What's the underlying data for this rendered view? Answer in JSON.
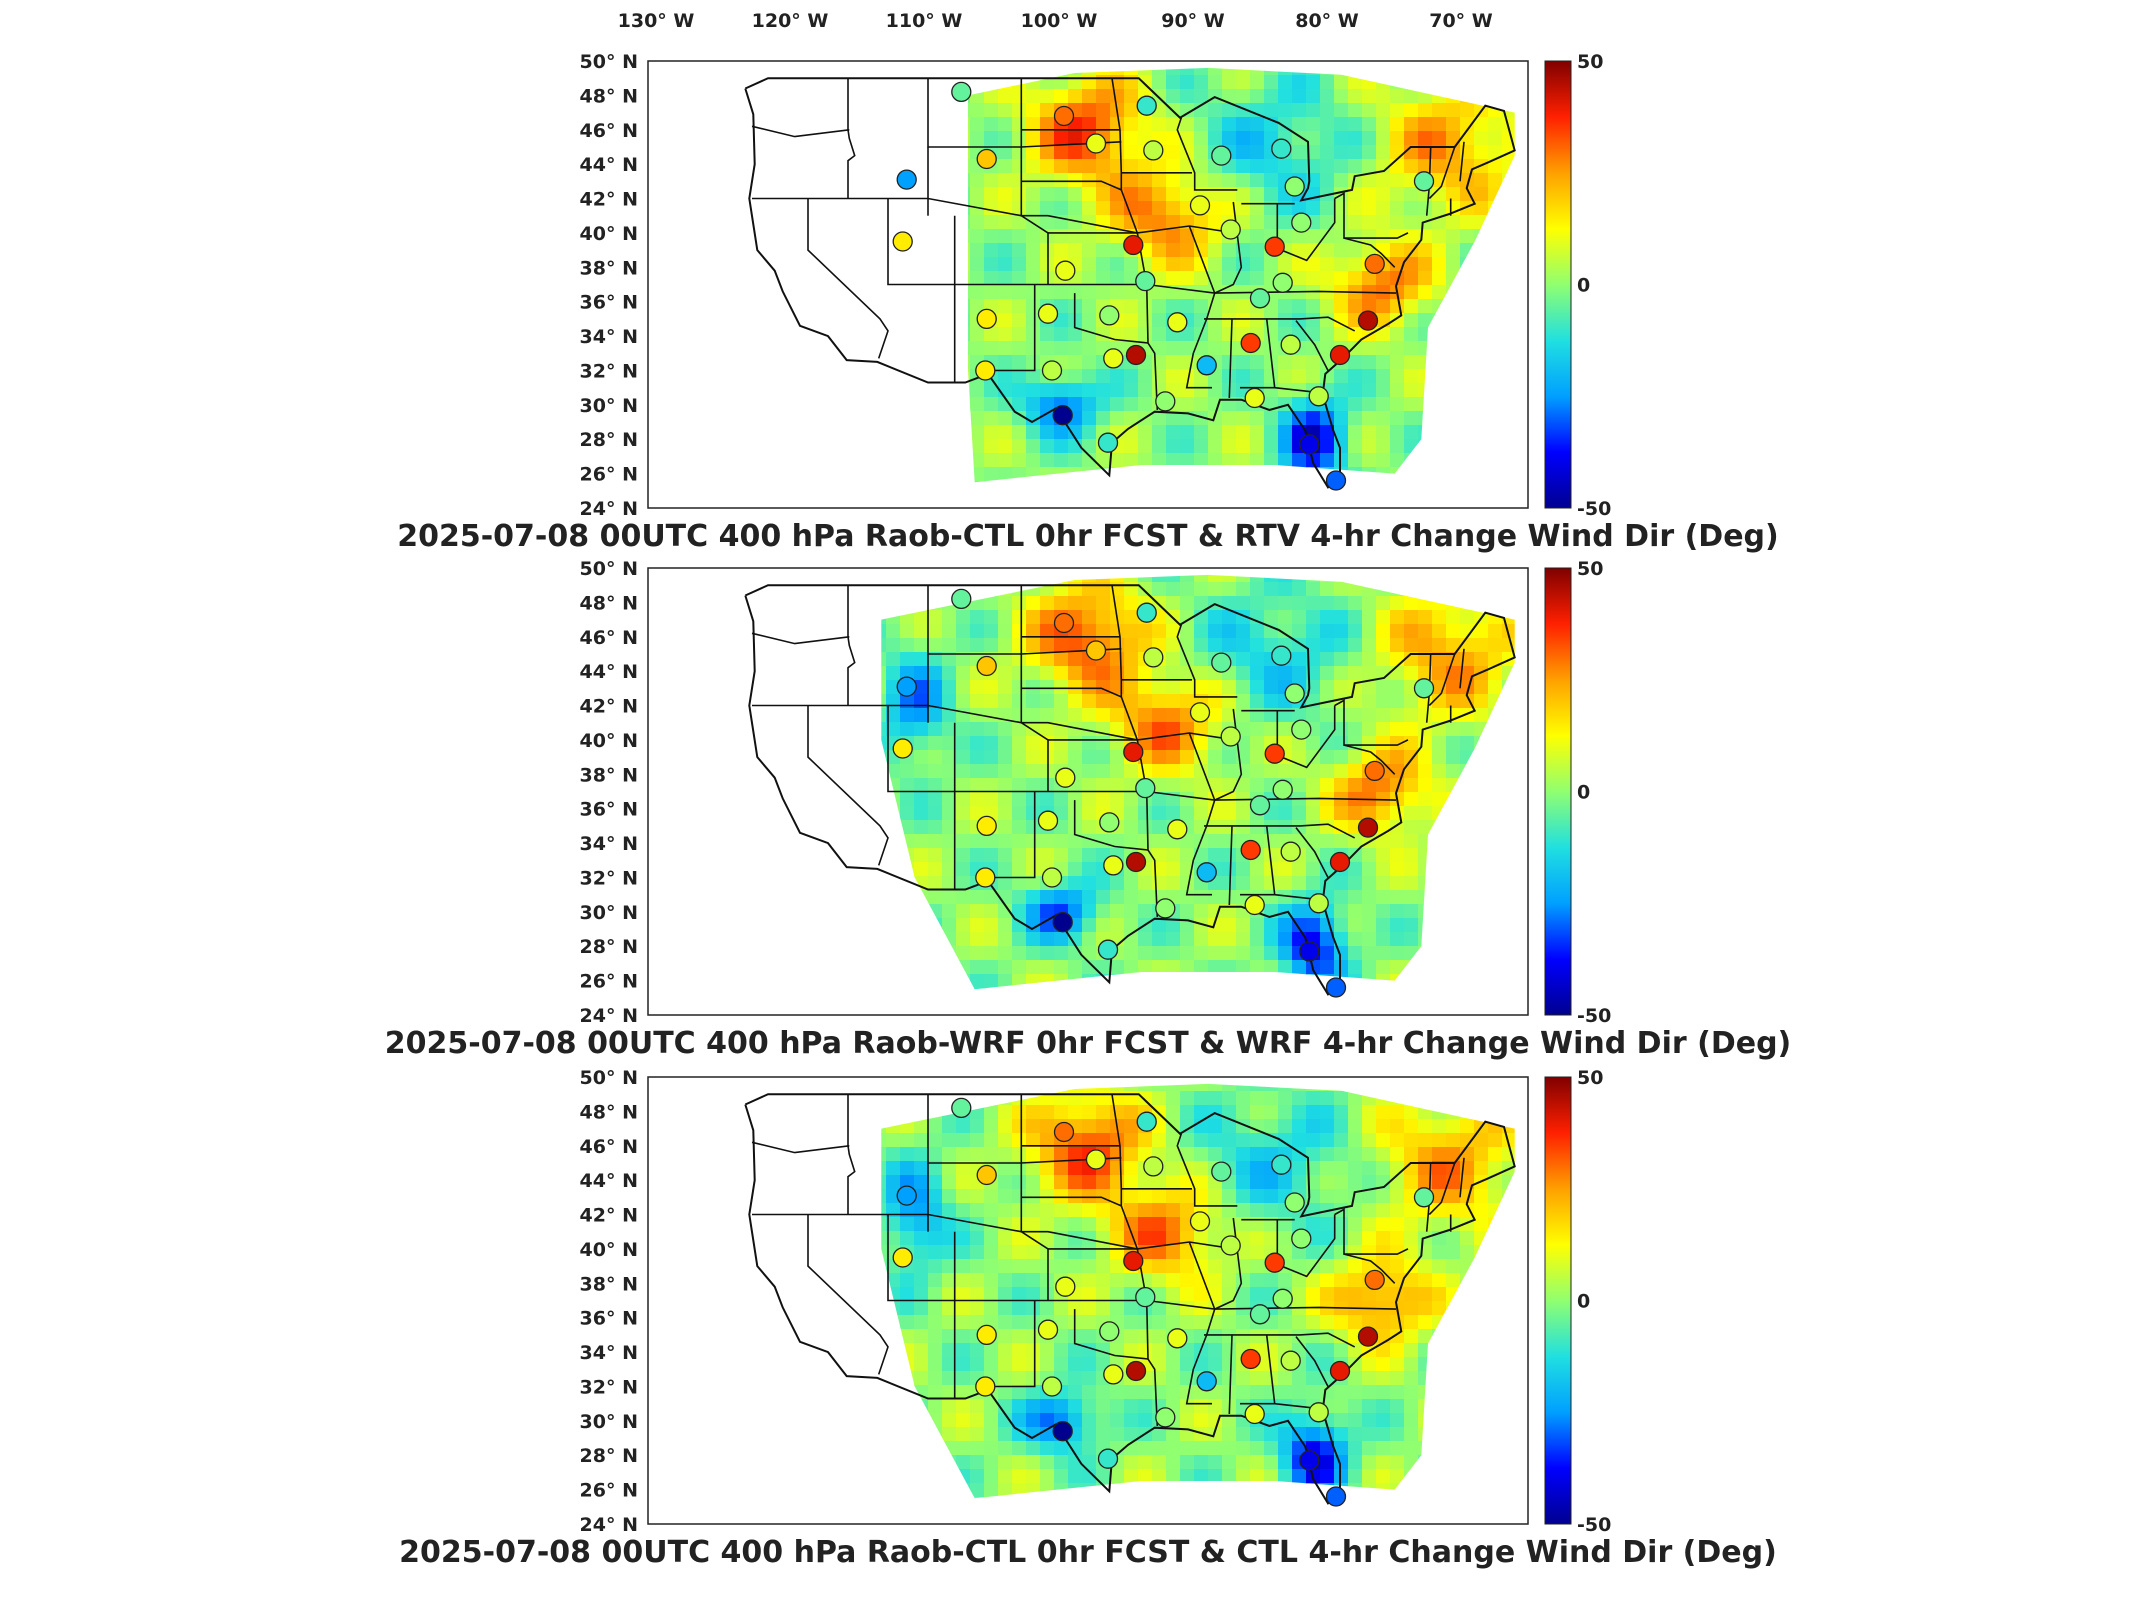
{
  "figure": {
    "top_axis_labels": [
      "130° W",
      "120° W",
      "110° W",
      "100° W",
      "90° W",
      "80° W",
      "70° W"
    ],
    "lat_labels": [
      "50° N",
      "48° N",
      "46° N",
      "44° N",
      "42° N",
      "40° N",
      "38° N",
      "36° N",
      "34° N",
      "32° N",
      "30° N",
      "28° N",
      "26° N",
      "24° N"
    ],
    "colorbar": {
      "max_label": "50",
      "mid_label": "0",
      "min_label": "-50",
      "range": [
        -50,
        50
      ]
    },
    "panels": [
      {
        "title": "2025-07-08 00UTC 400 hPa Raob-CTL 0hr FCST & RTV 4-hr Change Wind Dir (Deg)"
      },
      {
        "title": "2025-07-08 00UTC 400 hPa Raob-WRF 0hr FCST & WRF 4-hr Change Wind Dir (Deg)"
      },
      {
        "title": "2025-07-08 00UTC 400 hPa Raob-CTL 0hr FCST & CTL 4-hr Change Wind Dir (Deg)"
      }
    ],
    "colormap": [
      "#00008f",
      "#0000ff",
      "#00a0ff",
      "#20e0e0",
      "#90ff70",
      "#ffff00",
      "#ffa000",
      "#ff2000",
      "#800000"
    ]
  },
  "chart_data": {
    "type": "map",
    "xlabel": "",
    "ylabel": "",
    "lon_range": [
      -132,
      -66
    ],
    "lat_range": [
      24,
      50
    ],
    "colorbar_range": [
      -50,
      50
    ],
    "panels": [
      {
        "title": "2025-07-08 00UTC 400 hPa Raob-CTL 0hr FCST & RTV 4-hr Change Wind Dir (Deg)",
        "stations": [
          {
            "lon": -108.5,
            "lat": 48.2,
            "value": -5
          },
          {
            "lon": -100.8,
            "lat": 46.8,
            "value": 30
          },
          {
            "lon": -94.6,
            "lat": 47.4,
            "value": -10
          },
          {
            "lon": -106.6,
            "lat": 44.3,
            "value": 20
          },
          {
            "lon": -98.4,
            "lat": 45.2,
            "value": 10
          },
          {
            "lon": -94.1,
            "lat": 44.8,
            "value": 5
          },
          {
            "lon": -89.0,
            "lat": 44.5,
            "value": -5
          },
          {
            "lon": -84.5,
            "lat": 44.9,
            "value": -10
          },
          {
            "lon": -83.5,
            "lat": 42.7,
            "value": 0
          },
          {
            "lon": -73.8,
            "lat": 43.0,
            "value": -5
          },
          {
            "lon": -112.6,
            "lat": 43.1,
            "value": -25
          },
          {
            "lon": -90.6,
            "lat": 41.6,
            "value": 10
          },
          {
            "lon": -88.3,
            "lat": 40.2,
            "value": 5
          },
          {
            "lon": -83.0,
            "lat": 40.6,
            "value": 0
          },
          {
            "lon": -85.0,
            "lat": 39.2,
            "value": 35
          },
          {
            "lon": -95.6,
            "lat": 39.3,
            "value": 40
          },
          {
            "lon": -112.9,
            "lat": 39.5,
            "value": 15
          },
          {
            "lon": -100.7,
            "lat": 37.8,
            "value": 10
          },
          {
            "lon": -94.7,
            "lat": 37.2,
            "value": -5
          },
          {
            "lon": -84.4,
            "lat": 37.1,
            "value": 0
          },
          {
            "lon": -77.5,
            "lat": 38.2,
            "value": 30
          },
          {
            "lon": -106.6,
            "lat": 35.0,
            "value": 15
          },
          {
            "lon": -102.0,
            "lat": 35.3,
            "value": 10
          },
          {
            "lon": -97.4,
            "lat": 35.2,
            "value": 0
          },
          {
            "lon": -92.3,
            "lat": 34.8,
            "value": 10
          },
          {
            "lon": -86.1,
            "lat": 36.2,
            "value": -5
          },
          {
            "lon": -78.0,
            "lat": 34.9,
            "value": 45
          },
          {
            "lon": -95.4,
            "lat": 32.9,
            "value": 45
          },
          {
            "lon": -86.8,
            "lat": 33.6,
            "value": 35
          },
          {
            "lon": -83.8,
            "lat": 33.5,
            "value": 5
          },
          {
            "lon": -80.1,
            "lat": 32.9,
            "value": 40
          },
          {
            "lon": -90.1,
            "lat": 32.3,
            "value": -20
          },
          {
            "lon": -97.1,
            "lat": 32.7,
            "value": 10
          },
          {
            "lon": -101.7,
            "lat": 32.0,
            "value": 5
          },
          {
            "lon": -106.7,
            "lat": 32.0,
            "value": 15
          },
          {
            "lon": -100.9,
            "lat": 29.4,
            "value": -50
          },
          {
            "lon": -97.5,
            "lat": 27.8,
            "value": -10
          },
          {
            "lon": -93.2,
            "lat": 30.2,
            "value": 0
          },
          {
            "lon": -86.5,
            "lat": 30.4,
            "value": 10
          },
          {
            "lon": -81.7,
            "lat": 30.5,
            "value": 5
          },
          {
            "lon": -82.4,
            "lat": 27.7,
            "value": -40
          },
          {
            "lon": -80.4,
            "lat": 25.6,
            "value": -30
          }
        ]
      },
      {
        "title": "2025-07-08 00UTC 400 hPa Raob-WRF 0hr FCST & WRF 4-hr Change Wind Dir (Deg)",
        "stations": [
          {
            "lon": -108.5,
            "lat": 48.2,
            "value": -5
          },
          {
            "lon": -100.8,
            "lat": 46.8,
            "value": 30
          },
          {
            "lon": -94.6,
            "lat": 47.4,
            "value": -10
          },
          {
            "lon": -106.6,
            "lat": 44.3,
            "value": 20
          },
          {
            "lon": -98.4,
            "lat": 45.2,
            "value": 20
          },
          {
            "lon": -94.1,
            "lat": 44.8,
            "value": 5
          },
          {
            "lon": -89.0,
            "lat": 44.5,
            "value": -5
          },
          {
            "lon": -84.5,
            "lat": 44.9,
            "value": -10
          },
          {
            "lon": -83.5,
            "lat": 42.7,
            "value": 0
          },
          {
            "lon": -73.8,
            "lat": 43.0,
            "value": -5
          },
          {
            "lon": -112.6,
            "lat": 43.1,
            "value": -25
          },
          {
            "lon": -90.6,
            "lat": 41.6,
            "value": 10
          },
          {
            "lon": -88.3,
            "lat": 40.2,
            "value": 5
          },
          {
            "lon": -83.0,
            "lat": 40.6,
            "value": 0
          },
          {
            "lon": -85.0,
            "lat": 39.2,
            "value": 35
          },
          {
            "lon": -95.6,
            "lat": 39.3,
            "value": 40
          },
          {
            "lon": -112.9,
            "lat": 39.5,
            "value": 15
          },
          {
            "lon": -100.7,
            "lat": 37.8,
            "value": 10
          },
          {
            "lon": -94.7,
            "lat": 37.2,
            "value": -5
          },
          {
            "lon": -84.4,
            "lat": 37.1,
            "value": 0
          },
          {
            "lon": -77.5,
            "lat": 38.2,
            "value": 30
          },
          {
            "lon": -106.6,
            "lat": 35.0,
            "value": 15
          },
          {
            "lon": -102.0,
            "lat": 35.3,
            "value": 10
          },
          {
            "lon": -97.4,
            "lat": 35.2,
            "value": 0
          },
          {
            "lon": -92.3,
            "lat": 34.8,
            "value": 10
          },
          {
            "lon": -86.1,
            "lat": 36.2,
            "value": -5
          },
          {
            "lon": -78.0,
            "lat": 34.9,
            "value": 45
          },
          {
            "lon": -95.4,
            "lat": 32.9,
            "value": 45
          },
          {
            "lon": -86.8,
            "lat": 33.6,
            "value": 35
          },
          {
            "lon": -83.8,
            "lat": 33.5,
            "value": 5
          },
          {
            "lon": -80.1,
            "lat": 32.9,
            "value": 40
          },
          {
            "lon": -90.1,
            "lat": 32.3,
            "value": -20
          },
          {
            "lon": -97.1,
            "lat": 32.7,
            "value": 10
          },
          {
            "lon": -101.7,
            "lat": 32.0,
            "value": 5
          },
          {
            "lon": -106.7,
            "lat": 32.0,
            "value": 15
          },
          {
            "lon": -100.9,
            "lat": 29.4,
            "value": -50
          },
          {
            "lon": -97.5,
            "lat": 27.8,
            "value": -10
          },
          {
            "lon": -93.2,
            "lat": 30.2,
            "value": 0
          },
          {
            "lon": -86.5,
            "lat": 30.4,
            "value": 10
          },
          {
            "lon": -81.7,
            "lat": 30.5,
            "value": 5
          },
          {
            "lon": -82.4,
            "lat": 27.7,
            "value": -40
          },
          {
            "lon": -80.4,
            "lat": 25.6,
            "value": -30
          }
        ]
      },
      {
        "title": "2025-07-08 00UTC 400 hPa Raob-CTL 0hr FCST & CTL 4-hr Change Wind Dir (Deg)",
        "stations": [
          {
            "lon": -108.5,
            "lat": 48.2,
            "value": -5
          },
          {
            "lon": -100.8,
            "lat": 46.8,
            "value": 30
          },
          {
            "lon": -94.6,
            "lat": 47.4,
            "value": -10
          },
          {
            "lon": -106.6,
            "lat": 44.3,
            "value": 20
          },
          {
            "lon": -98.4,
            "lat": 45.2,
            "value": 10
          },
          {
            "lon": -94.1,
            "lat": 44.8,
            "value": 5
          },
          {
            "lon": -89.0,
            "lat": 44.5,
            "value": -5
          },
          {
            "lon": -84.5,
            "lat": 44.9,
            "value": -10
          },
          {
            "lon": -83.5,
            "lat": 42.7,
            "value": 0
          },
          {
            "lon": -73.8,
            "lat": 43.0,
            "value": -5
          },
          {
            "lon": -112.6,
            "lat": 43.1,
            "value": -25
          },
          {
            "lon": -90.6,
            "lat": 41.6,
            "value": 10
          },
          {
            "lon": -88.3,
            "lat": 40.2,
            "value": 5
          },
          {
            "lon": -83.0,
            "lat": 40.6,
            "value": 0
          },
          {
            "lon": -85.0,
            "lat": 39.2,
            "value": 35
          },
          {
            "lon": -95.6,
            "lat": 39.3,
            "value": 40
          },
          {
            "lon": -112.9,
            "lat": 39.5,
            "value": 15
          },
          {
            "lon": -100.7,
            "lat": 37.8,
            "value": 10
          },
          {
            "lon": -94.7,
            "lat": 37.2,
            "value": -5
          },
          {
            "lon": -84.4,
            "lat": 37.1,
            "value": 0
          },
          {
            "lon": -77.5,
            "lat": 38.2,
            "value": 30
          },
          {
            "lon": -106.6,
            "lat": 35.0,
            "value": 15
          },
          {
            "lon": -102.0,
            "lat": 35.3,
            "value": 10
          },
          {
            "lon": -97.4,
            "lat": 35.2,
            "value": 0
          },
          {
            "lon": -92.3,
            "lat": 34.8,
            "value": 10
          },
          {
            "lon": -86.1,
            "lat": 36.2,
            "value": -5
          },
          {
            "lon": -78.0,
            "lat": 34.9,
            "value": 45
          },
          {
            "lon": -95.4,
            "lat": 32.9,
            "value": 45
          },
          {
            "lon": -86.8,
            "lat": 33.6,
            "value": 35
          },
          {
            "lon": -83.8,
            "lat": 33.5,
            "value": 5
          },
          {
            "lon": -80.1,
            "lat": 32.9,
            "value": 40
          },
          {
            "lon": -90.1,
            "lat": 32.3,
            "value": -20
          },
          {
            "lon": -97.1,
            "lat": 32.7,
            "value": 10
          },
          {
            "lon": -101.7,
            "lat": 32.0,
            "value": 5
          },
          {
            "lon": -106.7,
            "lat": 32.0,
            "value": 15
          },
          {
            "lon": -100.9,
            "lat": 29.4,
            "value": -50
          },
          {
            "lon": -97.5,
            "lat": 27.8,
            "value": -10
          },
          {
            "lon": -93.2,
            "lat": 30.2,
            "value": 0
          },
          {
            "lon": -86.5,
            "lat": 30.4,
            "value": 10
          },
          {
            "lon": -81.7,
            "lat": 30.5,
            "value": 5
          },
          {
            "lon": -82.4,
            "lat": 27.7,
            "value": -40
          },
          {
            "lon": -80.4,
            "lat": 25.6,
            "value": -30
          }
        ]
      }
    ]
  }
}
